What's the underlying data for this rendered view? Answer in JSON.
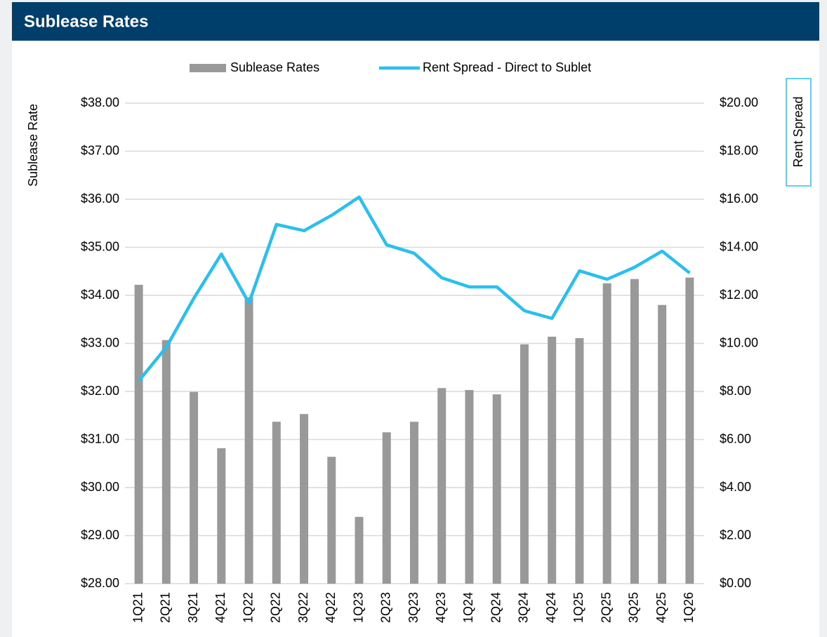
{
  "chart_data": {
    "type": "bar-line",
    "title": "Sublease Rates",
    "ylabel": "Sublease Rate",
    "y2label": "Rent Spread",
    "categories": [
      "1Q21",
      "2Q21",
      "3Q21",
      "4Q21",
      "1Q22",
      "2Q22",
      "3Q22",
      "4Q22",
      "1Q23",
      "2Q23",
      "3Q23",
      "4Q23",
      "1Q24",
      "2Q24",
      "3Q24",
      "4Q24",
      "1Q25",
      "2Q25",
      "3Q25",
      "4Q25",
      "1Q26"
    ],
    "series": [
      {
        "name": "Sublease Rates",
        "type": "bar",
        "color": "#999999",
        "axis": "y",
        "values": [
          34.22,
          33.07,
          31.99,
          30.82,
          33.96,
          31.37,
          31.53,
          30.64,
          29.39,
          31.15,
          31.37,
          32.07,
          32.03,
          31.94,
          32.98,
          33.14,
          33.11,
          34.25,
          34.34,
          33.8,
          34.37
        ]
      },
      {
        "name": "Rent Spread - Direct to Sublet",
        "type": "line",
        "color": "#29c0f0",
        "axis": "y2",
        "values": [
          8.44,
          9.84,
          11.88,
          13.72,
          11.68,
          14.95,
          14.69,
          15.33,
          16.09,
          14.1,
          13.75,
          12.73,
          12.35,
          12.35,
          11.36,
          11.04,
          13.02,
          12.67,
          13.17,
          13.84,
          12.93
        ]
      }
    ],
    "ylim": [
      28,
      38
    ],
    "yticks": [
      {
        "value": 28,
        "label": "$28.00"
      },
      {
        "value": 29,
        "label": "$29.00"
      },
      {
        "value": 30,
        "label": "$30.00"
      },
      {
        "value": 31,
        "label": "$31.00"
      },
      {
        "value": 32,
        "label": "$32.00"
      },
      {
        "value": 33,
        "label": "$33.00"
      },
      {
        "value": 34,
        "label": "$34.00"
      },
      {
        "value": 35,
        "label": "$35.00"
      },
      {
        "value": 36,
        "label": "$36.00"
      },
      {
        "value": 37,
        "label": "$37.00"
      },
      {
        "value": 38,
        "label": "$38.00"
      }
    ],
    "y2lim": [
      0,
      20
    ],
    "y2ticks": [
      {
        "value": 0,
        "label": "$0.00"
      },
      {
        "value": 2,
        "label": "$2.00"
      },
      {
        "value": 4,
        "label": "$4.00"
      },
      {
        "value": 6,
        "label": "$6.00"
      },
      {
        "value": 8,
        "label": "$8.00"
      },
      {
        "value": 10,
        "label": "$10.00"
      },
      {
        "value": 12,
        "label": "$12.00"
      },
      {
        "value": 14,
        "label": "$14.00"
      },
      {
        "value": 16,
        "label": "$16.00"
      },
      {
        "value": 18,
        "label": "$18.00"
      },
      {
        "value": 20,
        "label": "$20.00"
      }
    ],
    "grid": true,
    "legend": "top"
  }
}
